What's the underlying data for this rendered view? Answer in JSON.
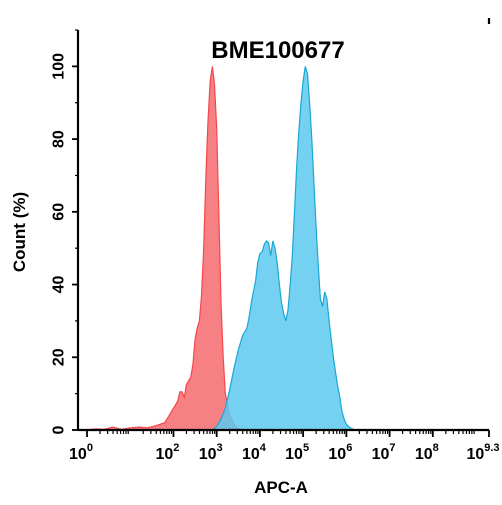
{
  "chart_data": {
    "type": "area",
    "title": "BME100677",
    "xlabel": "APC-A",
    "ylabel": "Count  (%)",
    "x_scale": "log10",
    "xlim_log10": [
      0,
      9.3
    ],
    "ylim": [
      0,
      110
    ],
    "x_ticks": [
      {
        "base": "10",
        "exp": "0",
        "log": 0
      },
      {
        "base": "10",
        "exp": "2",
        "log": 2
      },
      {
        "base": "10",
        "exp": "3",
        "log": 3
      },
      {
        "base": "10",
        "exp": "4",
        "log": 4
      },
      {
        "base": "10",
        "exp": "5",
        "log": 5
      },
      {
        "base": "10",
        "exp": "6",
        "log": 6
      },
      {
        "base": "10",
        "exp": "7",
        "log": 7
      },
      {
        "base": "10",
        "exp": "8",
        "log": 8
      },
      {
        "base": "10",
        "exp": "9.3",
        "log": 9.3
      }
    ],
    "y_ticks": [
      0,
      20,
      40,
      60,
      80,
      100
    ],
    "grid": false,
    "legend": "none",
    "series": [
      {
        "color": "#f4474c",
        "fill": "#f66a6e",
        "points": [
          [
            0.0,
            0
          ],
          [
            0.2,
            0.3
          ],
          [
            0.4,
            0.2
          ],
          [
            0.6,
            0.8
          ],
          [
            0.8,
            0.2
          ],
          [
            1.0,
            0.6
          ],
          [
            1.2,
            0.8
          ],
          [
            1.4,
            0.6
          ],
          [
            1.6,
            1.2
          ],
          [
            1.8,
            2.0
          ],
          [
            1.9,
            4.0
          ],
          [
            2.0,
            6.0
          ],
          [
            2.1,
            8.0
          ],
          [
            2.15,
            10.5
          ],
          [
            2.2,
            10.5
          ],
          [
            2.25,
            9.0
          ],
          [
            2.3,
            12.5
          ],
          [
            2.35,
            13.5
          ],
          [
            2.4,
            14.5
          ],
          [
            2.45,
            18.0
          ],
          [
            2.5,
            25.0
          ],
          [
            2.55,
            28.0
          ],
          [
            2.6,
            30.0
          ],
          [
            2.65,
            37.0
          ],
          [
            2.7,
            50.0
          ],
          [
            2.75,
            70.0
          ],
          [
            2.8,
            85.0
          ],
          [
            2.85,
            96.0
          ],
          [
            2.9,
            100.0
          ],
          [
            2.95,
            95.0
          ],
          [
            3.0,
            83.0
          ],
          [
            3.05,
            60.0
          ],
          [
            3.1,
            35.0
          ],
          [
            3.15,
            20.0
          ],
          [
            3.2,
            10.0
          ],
          [
            3.3,
            4.0
          ],
          [
            3.4,
            1.5
          ],
          [
            3.5,
            0.5
          ],
          [
            3.6,
            0
          ]
        ]
      },
      {
        "color": "#1aa7d4",
        "fill": "#5cc9ee",
        "points": [
          [
            2.9,
            0
          ],
          [
            3.0,
            1.0
          ],
          [
            3.1,
            3.0
          ],
          [
            3.2,
            6.0
          ],
          [
            3.3,
            11.0
          ],
          [
            3.4,
            17.0
          ],
          [
            3.5,
            22.0
          ],
          [
            3.6,
            26.0
          ],
          [
            3.7,
            28.0
          ],
          [
            3.75,
            31.0
          ],
          [
            3.8,
            35.0
          ],
          [
            3.85,
            38.0
          ],
          [
            3.9,
            41.0
          ],
          [
            3.95,
            46.0
          ],
          [
            4.0,
            48.5
          ],
          [
            4.05,
            49.0
          ],
          [
            4.1,
            51.0
          ],
          [
            4.15,
            52.0
          ],
          [
            4.2,
            51.5
          ],
          [
            4.25,
            48.0
          ],
          [
            4.3,
            52.0
          ],
          [
            4.35,
            50.0
          ],
          [
            4.4,
            46.0
          ],
          [
            4.45,
            40.0
          ],
          [
            4.5,
            35.0
          ],
          [
            4.55,
            32.0
          ],
          [
            4.6,
            30.0
          ],
          [
            4.65,
            33.0
          ],
          [
            4.7,
            40.0
          ],
          [
            4.75,
            48.0
          ],
          [
            4.8,
            60.0
          ],
          [
            4.85,
            72.0
          ],
          [
            4.9,
            82.0
          ],
          [
            4.95,
            90.0
          ],
          [
            5.0,
            96.0
          ],
          [
            5.05,
            100.0
          ],
          [
            5.1,
            98.0
          ],
          [
            5.15,
            90.0
          ],
          [
            5.2,
            80.0
          ],
          [
            5.25,
            68.0
          ],
          [
            5.3,
            56.0
          ],
          [
            5.35,
            45.0
          ],
          [
            5.4,
            36.0
          ],
          [
            5.45,
            34.0
          ],
          [
            5.5,
            38.0
          ],
          [
            5.55,
            36.0
          ],
          [
            5.6,
            30.0
          ],
          [
            5.65,
            25.0
          ],
          [
            5.7,
            20.0
          ],
          [
            5.75,
            16.0
          ],
          [
            5.8,
            12.0
          ],
          [
            5.85,
            9.0
          ],
          [
            5.9,
            5.0
          ],
          [
            5.95,
            3.0
          ],
          [
            6.0,
            1.5
          ],
          [
            6.1,
            0.5
          ],
          [
            6.2,
            0
          ]
        ]
      }
    ]
  }
}
